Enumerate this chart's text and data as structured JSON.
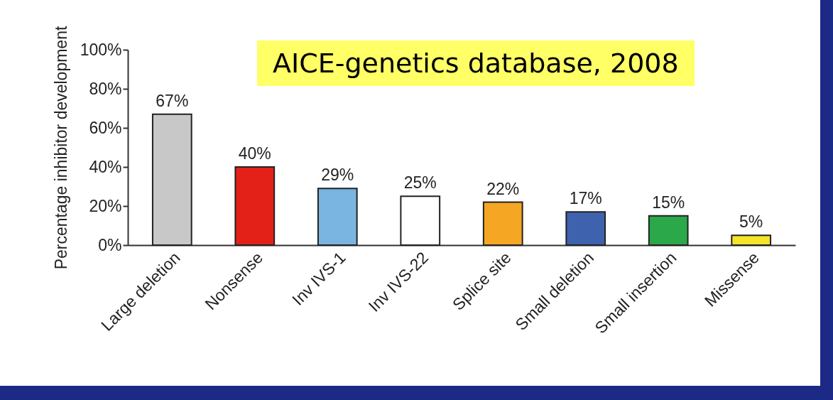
{
  "chart_data": {
    "type": "bar",
    "ylabel": "Percentage inhibitor development",
    "categories": [
      "Large deletion",
      "Nonsense",
      "Inv IVS-1",
      "Inv IVS-22",
      "Splice site",
      "Small deletion",
      "Small insertion",
      "Missense"
    ],
    "values": [
      67,
      40,
      29,
      25,
      22,
      17,
      15,
      5
    ],
    "colors": [
      "#c8c8c8",
      "#e32119",
      "#7ab4e0",
      "#ffffff",
      "#f5a623",
      "#3e62ad",
      "#2ba84a",
      "#f2e52a"
    ],
    "value_labels": [
      "67%",
      "40%",
      "29%",
      "25%",
      "22%",
      "17%",
      "15%",
      "5%"
    ],
    "ylim": [
      0,
      100
    ],
    "yticks": [
      {
        "value": 0,
        "label": "0%"
      },
      {
        "value": 20,
        "label": "20%"
      },
      {
        "value": 40,
        "label": "40%"
      },
      {
        "value": 60,
        "label": "60%"
      },
      {
        "value": 80,
        "label": "80%"
      },
      {
        "value": 100,
        "label": "100%"
      }
    ],
    "annotations": [
      "AICE-genetics database, 2008"
    ],
    "grid": false
  }
}
